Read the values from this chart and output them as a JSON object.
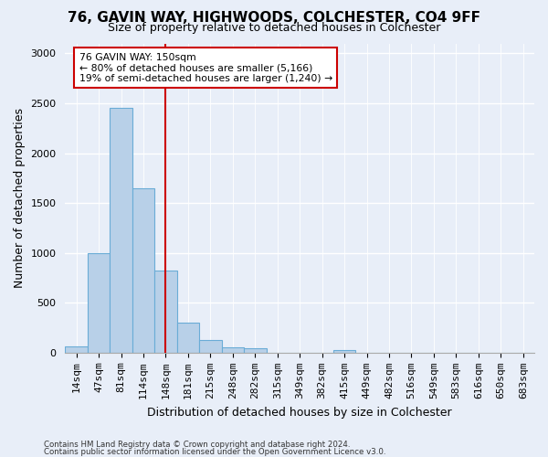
{
  "title1": "76, GAVIN WAY, HIGHWOODS, COLCHESTER, CO4 9FF",
  "title2": "Size of property relative to detached houses in Colchester",
  "xlabel": "Distribution of detached houses by size in Colchester",
  "ylabel": "Number of detached properties",
  "bin_labels": [
    "14sqm",
    "47sqm",
    "81sqm",
    "114sqm",
    "148sqm",
    "181sqm",
    "215sqm",
    "248sqm",
    "282sqm",
    "315sqm",
    "349sqm",
    "382sqm",
    "415sqm",
    "449sqm",
    "482sqm",
    "516sqm",
    "549sqm",
    "583sqm",
    "616sqm",
    "650sqm",
    "683sqm"
  ],
  "bar_values": [
    60,
    1000,
    2450,
    1650,
    820,
    300,
    130,
    55,
    45,
    0,
    0,
    0,
    30,
    0,
    0,
    0,
    0,
    0,
    0,
    0,
    0
  ],
  "bar_color": "#b8d0e8",
  "bar_edge_color": "#6aacd6",
  "vline_color": "#cc0000",
  "vline_pos": 4.5,
  "annotation_text": "76 GAVIN WAY: 150sqm\n← 80% of detached houses are smaller (5,166)\n19% of semi-detached houses are larger (1,240) →",
  "annotation_box_facecolor": "#ffffff",
  "annotation_box_edgecolor": "#cc0000",
  "ylim": [
    0,
    3100
  ],
  "yticks": [
    0,
    500,
    1000,
    1500,
    2000,
    2500,
    3000
  ],
  "footer1": "Contains HM Land Registry data © Crown copyright and database right 2024.",
  "footer2": "Contains public sector information licensed under the Open Government Licence v3.0.",
  "bg_color": "#e8eef8",
  "plot_bg_color": "#e8eef8",
  "grid_color": "#ffffff",
  "title1_fontsize": 11,
  "title2_fontsize": 9,
  "xlabel_fontsize": 9,
  "ylabel_fontsize": 9,
  "tick_fontsize": 8
}
